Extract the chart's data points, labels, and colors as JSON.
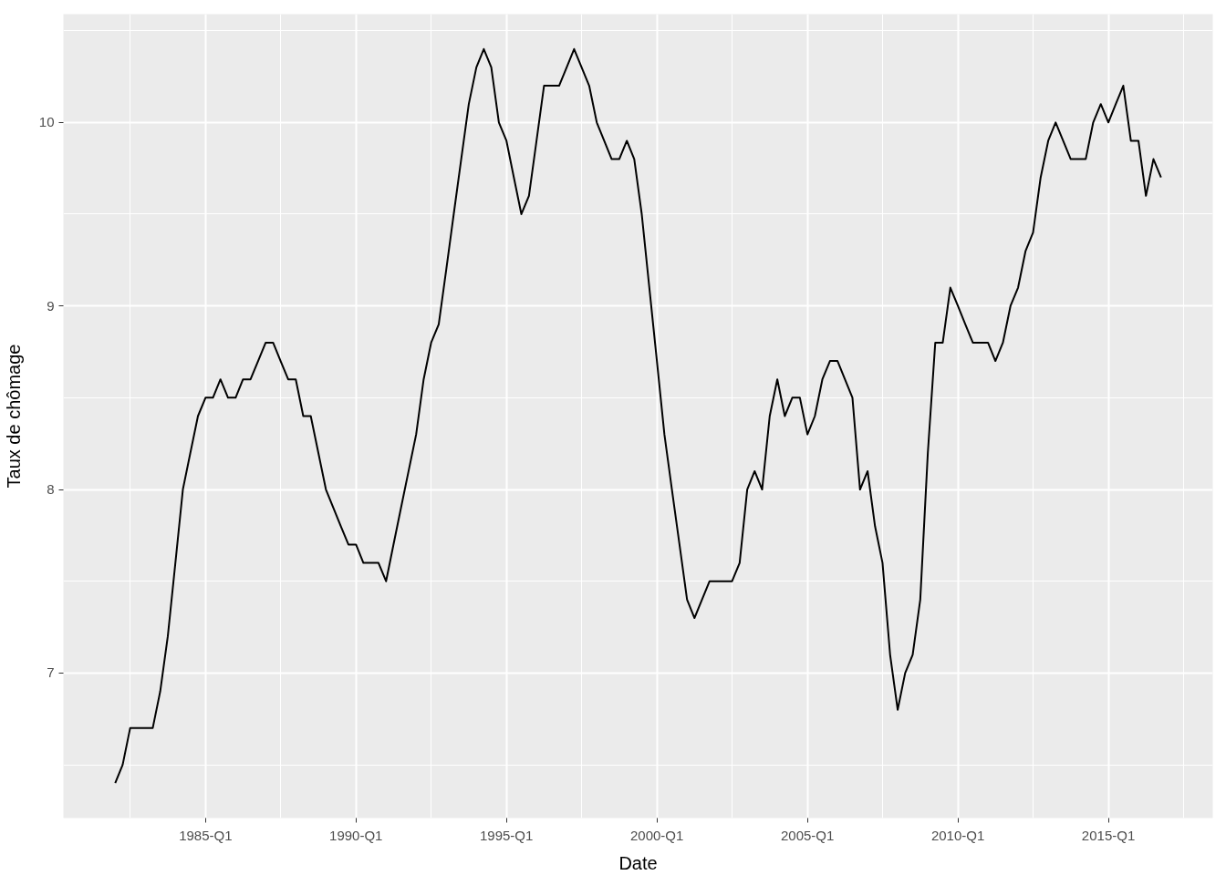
{
  "chart_data": {
    "type": "line",
    "xlabel": "Date",
    "ylabel": "Taux de chômage",
    "x": [
      "1982-01",
      "1982-04",
      "1982-07",
      "1982-10",
      "1983-01",
      "1983-04",
      "1983-07",
      "1983-10",
      "1984-01",
      "1984-04",
      "1984-07",
      "1984-10",
      "1985-01",
      "1985-04",
      "1985-07",
      "1985-10",
      "1986-01",
      "1986-04",
      "1986-07",
      "1986-10",
      "1987-01",
      "1987-04",
      "1987-07",
      "1987-10",
      "1988-01",
      "1988-04",
      "1988-07",
      "1988-10",
      "1989-01",
      "1989-04",
      "1989-07",
      "1989-10",
      "1990-01",
      "1990-04",
      "1990-07",
      "1990-10",
      "1991-01",
      "1991-04",
      "1991-07",
      "1991-10",
      "1992-01",
      "1992-04",
      "1992-07",
      "1992-10",
      "1993-01",
      "1993-04",
      "1993-07",
      "1993-10",
      "1994-01",
      "1994-04",
      "1994-07",
      "1994-10",
      "1995-01",
      "1995-04",
      "1995-07",
      "1995-10",
      "1996-01",
      "1996-04",
      "1996-07",
      "1996-10",
      "1997-01",
      "1997-04",
      "1997-07",
      "1997-10",
      "1998-01",
      "1998-04",
      "1998-07",
      "1998-10",
      "1999-01",
      "1999-04",
      "1999-07",
      "1999-10",
      "2000-01",
      "2000-04",
      "2000-07",
      "2000-10",
      "2001-01",
      "2001-04",
      "2001-07",
      "2001-10",
      "2002-01",
      "2002-04",
      "2002-07",
      "2002-10",
      "2003-01",
      "2003-04",
      "2003-07",
      "2003-10",
      "2004-01",
      "2004-04",
      "2004-07",
      "2004-10",
      "2005-01",
      "2005-04",
      "2005-07",
      "2005-10",
      "2006-01",
      "2006-04",
      "2006-07",
      "2006-10",
      "2007-01",
      "2007-04",
      "2007-07",
      "2007-10",
      "2008-01",
      "2008-04",
      "2008-07",
      "2008-10",
      "2009-01",
      "2009-04",
      "2009-07",
      "2009-10",
      "2010-01",
      "2010-04",
      "2010-07",
      "2010-10",
      "2011-01",
      "2011-04",
      "2011-07",
      "2011-10",
      "2012-01",
      "2012-04",
      "2012-07",
      "2012-10",
      "2013-01",
      "2013-04",
      "2013-07",
      "2013-10",
      "2014-01",
      "2014-04",
      "2014-07",
      "2014-10",
      "2015-01",
      "2015-04",
      "2015-07",
      "2015-10",
      "2016-01",
      "2016-04",
      "2016-07",
      "2016-10"
    ],
    "series": [
      {
        "color": "#000000",
        "values": [
          6.4,
          6.5,
          6.7,
          6.7,
          6.7,
          6.7,
          6.9,
          7.2,
          7.6,
          8.0,
          8.2,
          8.4,
          8.5,
          8.5,
          8.6,
          8.5,
          8.5,
          8.6,
          8.6,
          8.7,
          8.8,
          8.8,
          8.7,
          8.6,
          8.6,
          8.4,
          8.4,
          8.2,
          8.0,
          7.9,
          7.8,
          7.7,
          7.7,
          7.6,
          7.6,
          7.6,
          7.5,
          7.7,
          7.9,
          8.1,
          8.3,
          8.6,
          8.8,
          8.9,
          9.2,
          9.5,
          9.8,
          10.1,
          10.3,
          10.4,
          10.3,
          10.0,
          9.9,
          9.7,
          9.5,
          9.6,
          9.9,
          10.2,
          10.2,
          10.2,
          10.3,
          10.4,
          10.3,
          10.2,
          10.0,
          9.9,
          9.8,
          9.8,
          9.9,
          9.8,
          9.5,
          9.1,
          8.7,
          8.3,
          8.0,
          7.7,
          7.4,
          7.3,
          7.4,
          7.5,
          7.5,
          7.5,
          7.5,
          7.6,
          8.0,
          8.1,
          8.0,
          8.4,
          8.6,
          8.4,
          8.5,
          8.5,
          8.3,
          8.4,
          8.6,
          8.7,
          8.7,
          8.6,
          8.5,
          8.0,
          8.1,
          7.8,
          7.6,
          7.1,
          6.8,
          7.0,
          7.1,
          7.4,
          8.2,
          8.8,
          8.8,
          9.1,
          9.0,
          8.9,
          8.8,
          8.8,
          8.8,
          8.7,
          8.8,
          9.0,
          9.1,
          9.3,
          9.4,
          9.7,
          9.9,
          10.0,
          9.9,
          9.8,
          9.8,
          9.8,
          10.0,
          10.1,
          10.0,
          10.1,
          10.2,
          9.9,
          9.9,
          9.6,
          9.8,
          9.7
        ]
      }
    ],
    "xlim": [
      "1980-04-12",
      "2018-06-21"
    ],
    "ylim": [
      6.21,
      10.59
    ],
    "xticks": [
      {
        "value": "1985-01",
        "label": "1985-Q1"
      },
      {
        "value": "1990-01",
        "label": "1990-Q1"
      },
      {
        "value": "1995-01",
        "label": "1995-Q1"
      },
      {
        "value": "2000-01",
        "label": "2000-Q1"
      },
      {
        "value": "2005-01",
        "label": "2005-Q1"
      },
      {
        "value": "2010-01",
        "label": "2010-Q1"
      },
      {
        "value": "2015-01",
        "label": "2015-Q1"
      }
    ],
    "yticks": [
      7,
      8,
      9,
      10
    ],
    "grid": true,
    "line_style": "solid"
  }
}
